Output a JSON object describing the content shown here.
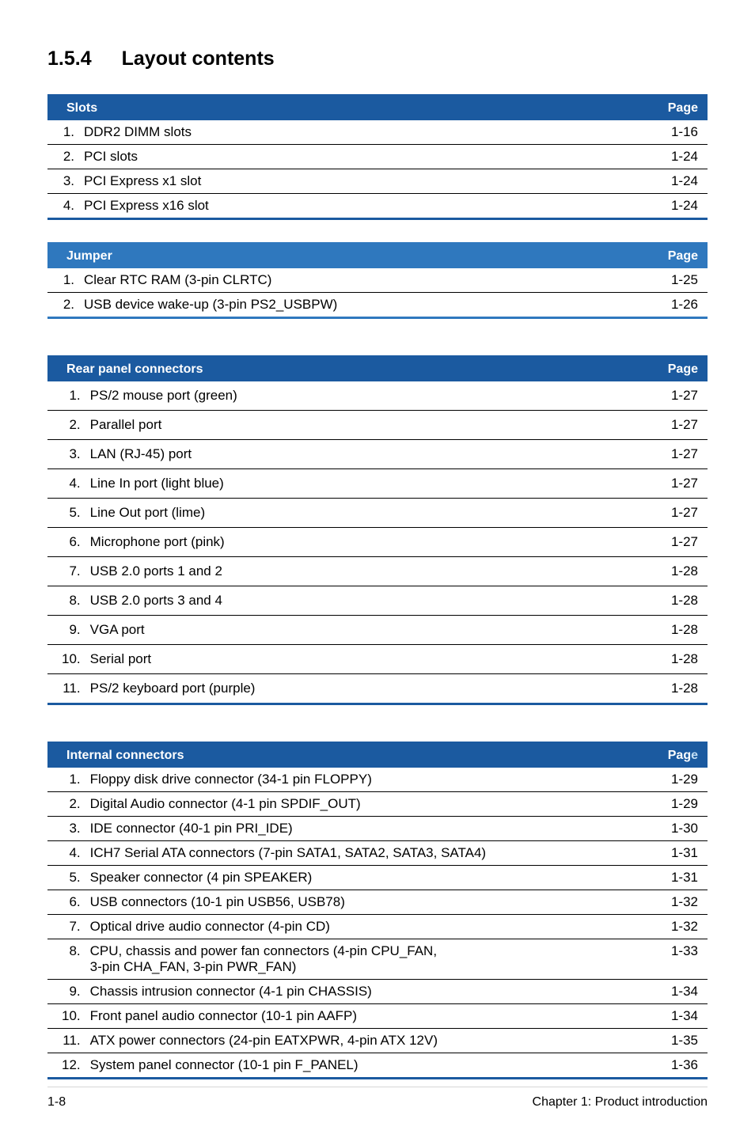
{
  "heading_number": "1.5.4",
  "heading_title": "Layout contents",
  "colors": {
    "slots_header_bg": "#1b5aa0",
    "slots_border": "#1b5aa0",
    "jumper_header_bg": "#2f78be",
    "jumper_border": "#2f78be",
    "rear_header_bg": "#1b5aa0",
    "rear_border": "#1b5aa0",
    "internal_header_bg": "#1b5aa0",
    "internal_border": "#1b5aa0",
    "page_label_color": "#c3dff5"
  },
  "page_label": "Page",
  "tables": {
    "slots": {
      "title": "Slots",
      "rows": [
        {
          "n": "1.",
          "d": "DDR2 DIMM slots",
          "p": "1-16"
        },
        {
          "n": "2.",
          "d": "PCI slots",
          "p": "1-24"
        },
        {
          "n": "3.",
          "d": "PCI Express x1 slot",
          "p": "1-24"
        },
        {
          "n": "4.",
          "d": "PCI Express x16 slot",
          "p": "1-24"
        }
      ]
    },
    "jumper": {
      "title": "Jumper",
      "rows": [
        {
          "n": "1.",
          "d": "Clear RTC RAM (3-pin CLRTC)",
          "p": "1-25"
        },
        {
          "n": "2.",
          "d": "USB device wake-up (3-pin PS2_USBPW)",
          "p": "1-26"
        }
      ]
    },
    "rear": {
      "title": "Rear panel connectors",
      "rows": [
        {
          "n": "1.",
          "d": "PS/2 mouse port (green)",
          "p": "1-27"
        },
        {
          "n": "2.",
          "d": "Parallel port",
          "p": "1-27"
        },
        {
          "n": "3.",
          "d": "LAN (RJ-45) port",
          "p": "1-27"
        },
        {
          "n": "4.",
          "d": "Line In port (light blue)",
          "p": "1-27"
        },
        {
          "n": "5.",
          "d": "Line Out port (lime)",
          "p": "1-27"
        },
        {
          "n": "6.",
          "d": "Microphone port (pink)",
          "p": "1-27"
        },
        {
          "n": "7.",
          "d": "USB 2.0 ports 1 and 2",
          "p": "1-28"
        },
        {
          "n": "8.",
          "d": "USB 2.0 ports 3 and 4",
          "p": "1-28"
        },
        {
          "n": "9.",
          "d": "VGA port",
          "p": "1-28"
        },
        {
          "n": "10.",
          "d": "Serial port",
          "p": "1-28"
        },
        {
          "n": "11.",
          "d": "PS/2 keyboard port (purple)",
          "p": "1-28"
        }
      ]
    },
    "internal": {
      "title": "Internal connectors",
      "page_label_html": true,
      "rows": [
        {
          "n": "1.",
          "d": "Floppy disk drive connector (34-1 pin FLOPPY)",
          "p": "1-29"
        },
        {
          "n": "2.",
          "d": "Digital Audio connector (4-1 pin SPDIF_OUT)",
          "p": "1-29"
        },
        {
          "n": "3.",
          "d": "IDE connector (40-1 pin PRI_IDE)",
          "p": "1-30"
        },
        {
          "n": "4.",
          "d": "ICH7 Serial ATA connectors (7-pin SATA1, SATA2, SATA3, SATA4)",
          "p": "1-31"
        },
        {
          "n": "5.",
          "d": "Speaker connector (4 pin SPEAKER)",
          "p": "1-31"
        },
        {
          "n": "6.",
          "d": "USB connectors (10-1 pin USB56, USB78)",
          "p": "1-32"
        },
        {
          "n": "7.",
          "d": "Optical drive audio connector (4-pin CD)",
          "p": "1-32"
        },
        {
          "n": "8.",
          "d": "CPU, chassis and power fan connectors (4-pin CPU_FAN,\n3-pin CHA_FAN, 3-pin PWR_FAN)",
          "p": "1-33"
        },
        {
          "n": "9.",
          "d": "Chassis intrusion connector (4-1 pin CHASSIS)",
          "p": "1-34"
        },
        {
          "n": "10.",
          "d": "Front panel audio connector (10-1 pin AAFP)",
          "p": "1-34"
        },
        {
          "n": "11.",
          "d": "ATX power connectors (24-pin EATXPWR, 4-pin ATX 12V)",
          "p": "1-35"
        },
        {
          "n": "12.",
          "d": "System panel connector (10-1 pin F_PANEL)",
          "p": "1-36"
        }
      ]
    }
  },
  "footer": {
    "left": "1-8",
    "right": "Chapter 1: Product introduction"
  }
}
